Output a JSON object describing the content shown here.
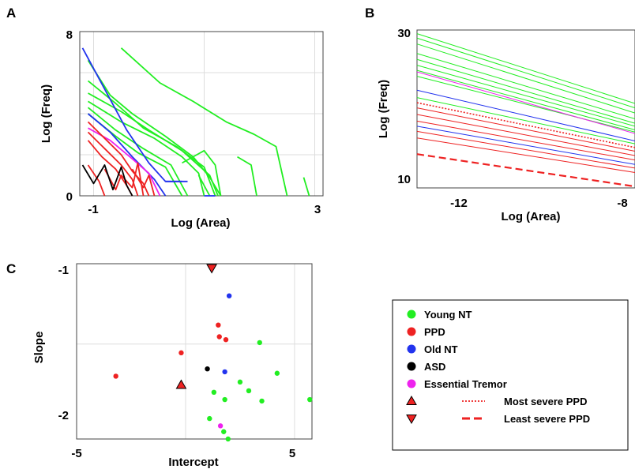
{
  "colors": {
    "young_nt": "#22ee22",
    "ppd": "#ee2222",
    "old_nt": "#2233ee",
    "asd": "#000000",
    "essential_tremor": "#ee22ee"
  },
  "chart_data": [
    {
      "panel": "A",
      "type": "line",
      "xlabel": "Log (Area)",
      "ylabel": "Log (Freq)",
      "xlim": [
        -1.25,
        3.15
      ],
      "ylim": [
        0,
        8
      ],
      "xticks": [
        "-1",
        "3"
      ],
      "yticks": [
        "0",
        "8"
      ],
      "grid": true,
      "series": [
        {
          "group": "young_nt",
          "points": [
            [
              -0.5,
              7.2
            ],
            [
              0.2,
              5.5
            ],
            [
              0.8,
              4.6
            ],
            [
              1.4,
              3.6
            ],
            [
              1.9,
              3.0
            ],
            [
              2.3,
              2.4
            ],
            [
              2.5,
              0
            ]
          ]
        },
        {
          "group": "young_nt",
          "points": [
            [
              -1.1,
              6.6
            ],
            [
              -0.7,
              4.9
            ],
            [
              -0.3,
              4.0
            ],
            [
              0.3,
              2.9
            ],
            [
              0.8,
              1.9
            ],
            [
              1.1,
              0.9
            ],
            [
              1.3,
              0
            ]
          ]
        },
        {
          "group": "young_nt",
          "points": [
            [
              -1.1,
              5.6
            ],
            [
              -0.6,
              4.5
            ],
            [
              -0.1,
              3.3
            ],
            [
              0.5,
              2.4
            ],
            [
              1.0,
              1.4
            ],
            [
              1.2,
              0
            ]
          ]
        },
        {
          "group": "young_nt",
          "points": [
            [
              -1.1,
              5.0
            ],
            [
              -0.5,
              4.1
            ],
            [
              0.0,
              3.2
            ],
            [
              0.6,
              2.2
            ],
            [
              1.1,
              1.0
            ],
            [
              1.25,
              0
            ]
          ]
        },
        {
          "group": "young_nt",
          "points": [
            [
              -1.1,
              4.6
            ],
            [
              -0.5,
              3.6
            ],
            [
              0.1,
              2.8
            ],
            [
              0.6,
              1.9
            ],
            [
              0.9,
              1.1
            ],
            [
              1.0,
              0
            ]
          ]
        },
        {
          "group": "young_nt",
          "points": [
            [
              -1.1,
              4.3
            ],
            [
              -0.6,
              3.2
            ],
            [
              -0.1,
              2.3
            ],
            [
              0.4,
              1.5
            ],
            [
              0.7,
              0
            ]
          ]
        },
        {
          "group": "young_nt",
          "points": [
            [
              -1.1,
              4.0
            ],
            [
              -0.6,
              2.9
            ],
            [
              -0.2,
              2.1
            ],
            [
              0.3,
              1.4
            ],
            [
              0.6,
              0
            ]
          ]
        },
        {
          "group": "young_nt",
          "points": [
            [
              0.6,
              1.6
            ],
            [
              1.0,
              2.2
            ],
            [
              1.2,
              1.5
            ],
            [
              1.3,
              0
            ]
          ]
        },
        {
          "group": "young_nt",
          "points": [
            [
              1.6,
              1.9
            ],
            [
              1.85,
              1.5
            ],
            [
              1.95,
              0
            ]
          ]
        },
        {
          "group": "young_nt",
          "points": [
            [
              0.9,
              1.0
            ],
            [
              1.1,
              0
            ]
          ]
        },
        {
          "group": "young_nt",
          "points": [
            [
              2.8,
              0.9
            ],
            [
              2.9,
              0
            ]
          ]
        },
        {
          "group": "old_nt",
          "points": [
            [
              -1.2,
              7.2
            ],
            [
              -0.8,
              5.2
            ],
            [
              -0.4,
              3.2
            ],
            [
              0.0,
              1.6
            ],
            [
              0.3,
              0.7
            ],
            [
              0.7,
              0.7
            ]
          ]
        },
        {
          "group": "old_nt",
          "points": [
            [
              -1.1,
              4.0
            ],
            [
              -0.7,
              3.1
            ],
            [
              -0.3,
              1.9
            ],
            [
              0.1,
              0.8
            ],
            [
              0.3,
              0
            ]
          ]
        },
        {
          "group": "old_nt",
          "points": [
            [
              0.3,
              0.7
            ],
            [
              0.6,
              0.7
            ]
          ]
        },
        {
          "group": "old_nt",
          "points": [
            [
              1.0,
              0
            ],
            [
              1.2,
              0
            ]
          ]
        },
        {
          "group": "essential_tremor",
          "points": [
            [
              -1.1,
              3.3
            ],
            [
              -0.7,
              2.7
            ],
            [
              -0.3,
              1.8
            ],
            [
              0.0,
              1.1
            ],
            [
              0.2,
              0
            ]
          ]
        },
        {
          "group": "ppd",
          "points": [
            [
              -1.1,
              3.6
            ],
            [
              -0.8,
              2.8
            ],
            [
              -0.5,
              2.0
            ],
            [
              -0.3,
              1.2
            ],
            [
              -0.1,
              0.6
            ],
            [
              0.0,
              0
            ]
          ]
        },
        {
          "group": "ppd",
          "points": [
            [
              -1.1,
              3.1
            ],
            [
              -0.8,
              2.3
            ],
            [
              -0.5,
              1.5
            ],
            [
              -0.3,
              0.8
            ],
            [
              -0.2,
              0
            ]
          ]
        },
        {
          "group": "ppd",
          "points": [
            [
              -1.1,
              2.7
            ],
            [
              -0.85,
              1.9
            ],
            [
              -0.6,
              1.3
            ],
            [
              -0.4,
              0.5
            ],
            [
              -0.3,
              0
            ]
          ]
        },
        {
          "group": "ppd",
          "points": [
            [
              -1.1,
              1.5
            ],
            [
              -0.9,
              0.7
            ],
            [
              -0.8,
              0
            ]
          ]
        },
        {
          "group": "ppd",
          "points": [
            [
              -0.8,
              1.3
            ],
            [
              -0.6,
              0.3
            ],
            [
              -0.5,
              1.0
            ],
            [
              -0.3,
              0.4
            ],
            [
              -0.2,
              1.6
            ],
            [
              -0.1,
              0
            ]
          ]
        },
        {
          "group": "ppd",
          "points": [
            [
              -0.3,
              1.3
            ],
            [
              -0.1,
              0.4
            ],
            [
              0.0,
              1.0
            ],
            [
              0.1,
              0
            ]
          ]
        },
        {
          "group": "asd",
          "points": [
            [
              -1.2,
              1.5
            ],
            [
              -1.0,
              0.6
            ],
            [
              -0.8,
              1.5
            ],
            [
              -0.65,
              0.3
            ],
            [
              -0.5,
              1.4
            ],
            [
              -0.4,
              0.5
            ],
            [
              -0.3,
              0
            ]
          ]
        }
      ]
    },
    {
      "panel": "B",
      "type": "line",
      "xlabel": "Log (Area)",
      "ylabel": "Log (Freq)",
      "xlim": [
        -13.2,
        -7.9
      ],
      "ylim": [
        9,
        30.5
      ],
      "xticks": [
        "-12",
        "-8"
      ],
      "yticks": [
        "10",
        "30"
      ],
      "grid": false,
      "series": [
        {
          "group": "young_nt",
          "start": 30.0,
          "end": 20.5
        },
        {
          "group": "young_nt",
          "start": 29.4,
          "end": 19.9
        },
        {
          "group": "young_nt",
          "start": 28.6,
          "end": 19.2
        },
        {
          "group": "young_nt",
          "start": 27.3,
          "end": 18.4
        },
        {
          "group": "young_nt",
          "start": 26.5,
          "end": 17.8
        },
        {
          "group": "young_nt",
          "start": 25.7,
          "end": 17.4
        },
        {
          "group": "young_nt",
          "start": 25.0,
          "end": 16.9
        },
        {
          "group": "young_nt",
          "start": 24.2,
          "end": 16.6
        },
        {
          "group": "essential_tremor",
          "start": 24.8,
          "end": 16.4
        },
        {
          "group": "old_nt",
          "start": 22.3,
          "end": 15.4
        },
        {
          "group": "young_nt",
          "start": 21.3,
          "end": 15.0
        },
        {
          "group": "ppd",
          "start": 20.6,
          "end": 14.5,
          "style": "dotted"
        },
        {
          "group": "ppd",
          "start": 19.9,
          "end": 14.0
        },
        {
          "group": "ppd",
          "start": 19.0,
          "end": 13.4
        },
        {
          "group": "ppd",
          "start": 18.1,
          "end": 12.8
        },
        {
          "group": "old_nt",
          "start": 17.4,
          "end": 12.2
        },
        {
          "group": "ppd",
          "start": 16.7,
          "end": 11.7
        },
        {
          "group": "ppd",
          "start": 15.8,
          "end": 11.1
        },
        {
          "group": "ppd",
          "start": 13.6,
          "end": 9.2,
          "style": "dashed"
        }
      ]
    },
    {
      "panel": "C",
      "type": "scatter",
      "xlabel": "Intercept",
      "ylabel": "Slope",
      "xlim": [
        -5,
        5.8
      ],
      "ylim": [
        -2.15,
        -0.95
      ],
      "xticks": [
        "-5",
        "5"
      ],
      "yticks": [
        "-1",
        "-2"
      ],
      "grid": true,
      "points": [
        {
          "group": "ppd",
          "x": 1.2,
          "y": -0.98,
          "marker": "triangle-down"
        },
        {
          "group": "old_nt",
          "x": 2.0,
          "y": -1.17
        },
        {
          "group": "ppd",
          "x": 1.5,
          "y": -1.37
        },
        {
          "group": "ppd",
          "x": 1.55,
          "y": -1.45
        },
        {
          "group": "ppd",
          "x": 1.85,
          "y": -1.47
        },
        {
          "group": "young_nt",
          "x": 3.4,
          "y": -1.49
        },
        {
          "group": "ppd",
          "x": -0.2,
          "y": -1.56
        },
        {
          "group": "asd",
          "x": 1.0,
          "y": -1.67
        },
        {
          "group": "old_nt",
          "x": 1.8,
          "y": -1.69
        },
        {
          "group": "young_nt",
          "x": 4.2,
          "y": -1.7
        },
        {
          "group": "ppd",
          "x": -3.2,
          "y": -1.72
        },
        {
          "group": "ppd",
          "x": -0.2,
          "y": -1.78,
          "marker": "triangle-up"
        },
        {
          "group": "young_nt",
          "x": 2.5,
          "y": -1.76
        },
        {
          "group": "young_nt",
          "x": 1.3,
          "y": -1.83
        },
        {
          "group": "young_nt",
          "x": 2.9,
          "y": -1.82
        },
        {
          "group": "young_nt",
          "x": 1.8,
          "y": -1.88
        },
        {
          "group": "young_nt",
          "x": 3.5,
          "y": -1.89
        },
        {
          "group": "young_nt",
          "x": 5.7,
          "y": -1.88
        },
        {
          "group": "young_nt",
          "x": 1.1,
          "y": -2.01
        },
        {
          "group": "essential_tremor",
          "x": 1.6,
          "y": -2.06
        },
        {
          "group": "young_nt",
          "x": 1.75,
          "y": -2.1
        },
        {
          "group": "young_nt",
          "x": 1.95,
          "y": -2.16
        }
      ]
    }
  ],
  "legend": {
    "items": [
      {
        "key": "young_nt",
        "label": "Young NT",
        "symbol": "dot"
      },
      {
        "key": "ppd",
        "label": "PPD",
        "symbol": "dot"
      },
      {
        "key": "old_nt",
        "label": "Old NT",
        "symbol": "dot"
      },
      {
        "key": "asd",
        "label": "ASD",
        "symbol": "dot"
      },
      {
        "key": "essential_tremor",
        "label": "Essential Tremor",
        "symbol": "dot"
      }
    ],
    "pairs": [
      {
        "marker": "triangle-up",
        "line": "dotted",
        "label": "Most severe PPD"
      },
      {
        "marker": "triangle-down",
        "line": "dashed",
        "label": "Least severe PPD"
      }
    ]
  }
}
